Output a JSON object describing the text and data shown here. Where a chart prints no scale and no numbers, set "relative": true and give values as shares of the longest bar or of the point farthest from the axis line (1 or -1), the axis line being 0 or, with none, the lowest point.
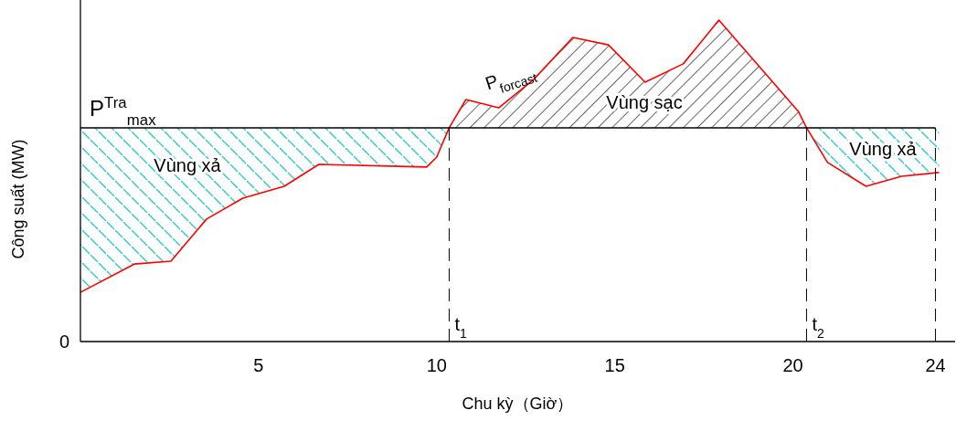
{
  "chart_data": {
    "type": "line",
    "relative": true,
    "xlabel": "Chu kỳ（Giờ）",
    "ylabel": "Công suất (MW)",
    "xlim": [
      0,
      24.55
    ],
    "xticks": [
      5,
      10,
      15,
      20,
      24
    ],
    "tick_labels": "x",
    "grid": false,
    "marker": "none",
    "line_style": "solid",
    "series": [
      {
        "color": "#ff0000",
        "x": [
          0,
          1.51,
          2.54,
          3.54,
          4.56,
          5.72,
          6.69,
          9.72,
          10.0,
          10.35,
          10.82,
          11.74,
          12.72,
          13.82,
          14.82,
          15.85,
          16.92,
          17.92,
          20.15,
          20.38,
          20.97,
          22.05,
          23.05,
          24.1
        ],
        "values": [
          0.153,
          0.241,
          0.25,
          0.381,
          0.446,
          0.483,
          0.551,
          0.543,
          0.574,
          0.665,
          0.753,
          0.727,
          0.815,
          0.946,
          0.923,
          0.807,
          0.864,
          1.0,
          0.716,
          0.665,
          0.557,
          0.483,
          0.514,
          0.526
        ],
        "lower": [
          0.153,
          0.241,
          0.25,
          0.381,
          0.446,
          0.483,
          0.551,
          0.543,
          0.574,
          0.665,
          0.665,
          0.665,
          0.665,
          0.665,
          0.665,
          0.665,
          0.665,
          0.665,
          0.665,
          0.665,
          0.557,
          0.483,
          0.514,
          0.526
        ],
        "upper": [
          0.665,
          0.665,
          0.665,
          0.665,
          0.665,
          0.665,
          0.665,
          0.665,
          0.665,
          0.665,
          0.753,
          0.727,
          0.815,
          0.946,
          0.923,
          0.807,
          0.864,
          1.0,
          0.716,
          0.665,
          0.665,
          0.665,
          0.665,
          0.665
        ]
      }
    ],
    "ref_lines": [
      {
        "axis": "y",
        "value": 0.665,
        "label": "P$^{Tra}$$_{max}$",
        "color": "#000000",
        "line_style": "solid"
      },
      {
        "axis": "x",
        "value": 10.35,
        "label": "t$_{1}$",
        "color": "#000000",
        "line_style": "dashed"
      },
      {
        "axis": "x",
        "value": 20.38,
        "label": "t$_{2}$",
        "color": "#000000",
        "line_style": "dashed"
      },
      {
        "axis": "x",
        "value": 24,
        "label": null,
        "color": "#000000",
        "line_style": "dashed"
      }
    ],
    "annotations": [
      "0",
      "P$_{forcast}$",
      "Vùng sạc",
      "Vùng xả",
      "Vùng xả"
    ]
  }
}
